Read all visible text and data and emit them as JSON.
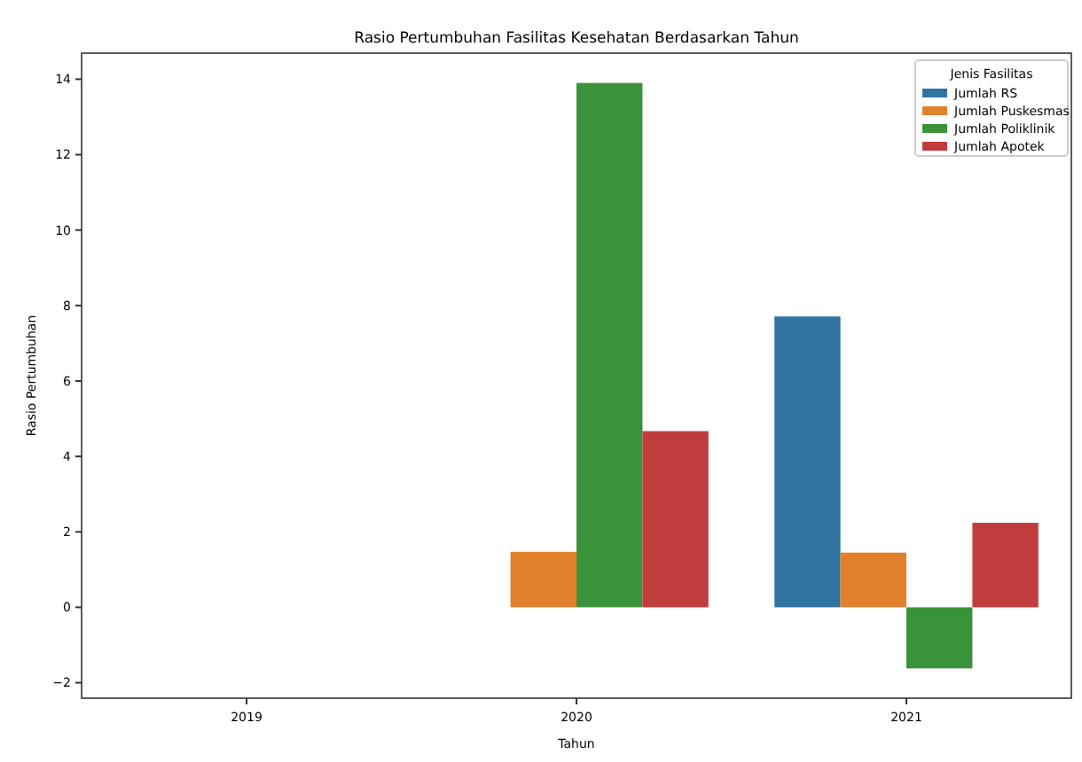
{
  "chart_data": {
    "type": "bar",
    "title": "Rasio Pertumbuhan Fasilitas Kesehatan Berdasarkan Tahun",
    "xlabel": "Tahun",
    "ylabel": "Rasio Pertumbuhan",
    "legend_title": "Jenis Fasilitas",
    "categories": [
      "2019",
      "2020",
      "2021"
    ],
    "series": [
      {
        "name": "Jumlah RS",
        "color": "#3274a1",
        "values": [
          null,
          null,
          7.71
        ]
      },
      {
        "name": "Jumlah Puskesmas",
        "color": "#e1812c",
        "values": [
          null,
          1.47,
          1.45
        ]
      },
      {
        "name": "Jumlah Poliklinik",
        "color": "#3a923a",
        "values": [
          null,
          13.9,
          -1.62
        ]
      },
      {
        "name": "Jumlah Apotek",
        "color": "#c03d3e",
        "values": [
          null,
          4.67,
          2.24
        ]
      }
    ],
    "ylim": [
      -2.41,
      14.69
    ],
    "yticks": [
      {
        "value": -2,
        "label": "−2"
      },
      0,
      2,
      4,
      6,
      8,
      10,
      12,
      14
    ],
    "grid": false,
    "legend": "top right"
  }
}
